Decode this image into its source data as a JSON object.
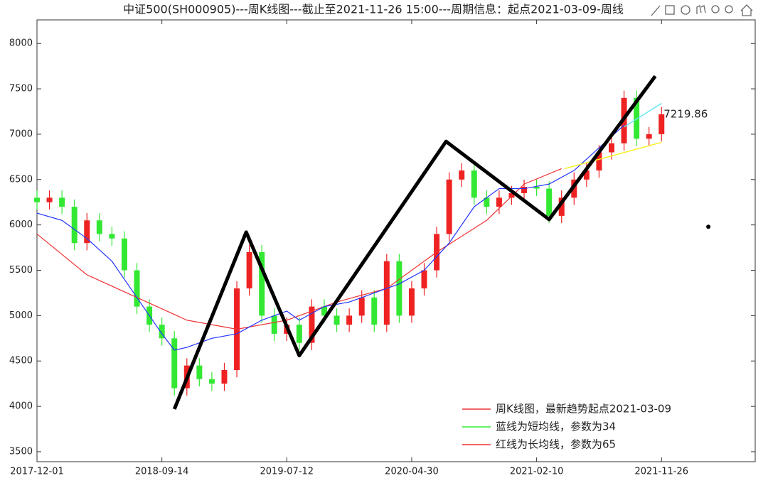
{
  "chart_data": {
    "type": "candlestick",
    "title": "中证500(SH000905)---周K线图---截止至2021-11-26 15:00---周期信息：起点2021-03-09-周线",
    "x": [
      0,
      4,
      8,
      12,
      16,
      20,
      24,
      28,
      32,
      36,
      40,
      44,
      48,
      52,
      56,
      60,
      64,
      68,
      72,
      76,
      80,
      84,
      88,
      92,
      96,
      100,
      104,
      108,
      112,
      116,
      120,
      124,
      128,
      132,
      136,
      140,
      144,
      148,
      152,
      156,
      160,
      164,
      168,
      172,
      176,
      180,
      184,
      188,
      192,
      196,
      200
    ],
    "open": [
      6300,
      6250,
      6300,
      6200,
      5800,
      6050,
      5900,
      5850,
      5500,
      5100,
      4900,
      4750,
      4200,
      4450,
      4300,
      4250,
      4400,
      5300,
      5700,
      5000,
      4800,
      4900,
      4700,
      5100,
      5000,
      4900,
      5000,
      5200,
      4900,
      5600,
      5000,
      5300,
      5500,
      5900,
      6500,
      6600,
      6300,
      6200,
      6300,
      6350,
      6420,
      6400,
      6100,
      6300,
      6500,
      6600,
      6800,
      6900,
      7400,
      6950,
      7000
    ],
    "high": [
      6380,
      6380,
      6380,
      6280,
      6130,
      6130,
      5980,
      5930,
      5580,
      5180,
      4980,
      4830,
      4530,
      4530,
      4380,
      4480,
      5380,
      5780,
      5780,
      5080,
      4980,
      4980,
      5180,
      5180,
      5080,
      5080,
      5280,
      5280,
      5680,
      5680,
      5380,
      5580,
      5980,
      6580,
      6680,
      6680,
      6380,
      6380,
      6430,
      6500,
      6500,
      6480,
      6380,
      6580,
      6680,
      6880,
      6980,
      7480,
      7480,
      7080,
      7300
    ],
    "low": [
      6170,
      6170,
      6120,
      5720,
      5720,
      5820,
      5770,
      5420,
      5020,
      4820,
      4670,
      4120,
      4120,
      4220,
      4170,
      4170,
      4320,
      5220,
      4920,
      4720,
      4720,
      4620,
      4620,
      4920,
      4820,
      4820,
      4920,
      4820,
      4820,
      4920,
      4920,
      5220,
      5420,
      5820,
      6420,
      6220,
      6120,
      6120,
      6220,
      6270,
      6320,
      6020,
      6020,
      6220,
      6420,
      6520,
      6720,
      6820,
      6870,
      6870,
      6920
    ],
    "close": [
      6250,
      6300,
      6200,
      5800,
      6050,
      5900,
      5850,
      5500,
      5100,
      4900,
      4750,
      4200,
      4450,
      4300,
      4250,
      4400,
      5300,
      5700,
      5000,
      4800,
      4900,
      4700,
      5100,
      5000,
      4900,
      5000,
      5200,
      4900,
      5600,
      5000,
      5300,
      5500,
      5900,
      6500,
      6600,
      6300,
      6200,
      6300,
      6350,
      6420,
      6400,
      6100,
      6300,
      6500,
      6600,
      6800,
      6900,
      7400,
      6950,
      7000,
      7220
    ],
    "up_color": "#ee2222",
    "down_color": "#33e833",
    "overlays": [
      {
        "color": "#ee3333",
        "width": 1.2,
        "x": [
          0,
          16,
          32,
          48,
          64,
          80,
          96,
          112,
          128,
          144,
          156,
          168
        ],
        "values": [
          5900,
          5450,
          5200,
          4950,
          4850,
          4950,
          5150,
          5300,
          5700,
          6050,
          6450,
          6620
        ]
      },
      {
        "color": "#2233ff",
        "width": 1.2,
        "x": [
          0,
          8,
          16,
          24,
          32,
          40,
          44,
          48,
          56,
          64,
          72,
          80,
          84,
          92,
          100,
          108,
          116,
          124,
          132,
          140,
          148,
          156,
          164,
          172,
          180,
          188
        ],
        "values": [
          6130,
          6050,
          5850,
          5600,
          5200,
          4800,
          4620,
          4650,
          4750,
          4800,
          4950,
          5050,
          4950,
          5100,
          5150,
          5250,
          5350,
          5500,
          5800,
          6200,
          6400,
          6400,
          6450,
          6600,
          6850,
          7100
        ]
      },
      {
        "color": "#f5f020",
        "width": 1.5,
        "x": [
          169,
          200
        ],
        "values": [
          6620,
          6910
        ]
      },
      {
        "color": "#66e6f0",
        "width": 1.5,
        "x": [
          188,
          200
        ],
        "values": [
          7080,
          7340
        ]
      },
      {
        "color": "#000000",
        "width": 5,
        "x": [
          44,
          67,
          84,
          131,
          164,
          198
        ],
        "values": [
          3970,
          5920,
          4560,
          6920,
          6060,
          7640
        ]
      }
    ],
    "marker": {
      "x": 215,
      "value": 5980,
      "color": "#000000"
    },
    "annotation": {
      "text": "7219.86",
      "x": 200,
      "value": 7219.86
    },
    "xlim": [
      0,
      230
    ],
    "xticks": [
      {
        "value": 0,
        "label": "2017-12-01"
      },
      {
        "value": 40,
        "label": "2018-09-14"
      },
      {
        "value": 80,
        "label": "2019-07-12"
      },
      {
        "value": 120,
        "label": "2020-04-30"
      },
      {
        "value": 160,
        "label": "2021-02-10"
      },
      {
        "value": 200,
        "label": "2021-11-26"
      }
    ],
    "ylim": [
      3390,
      8260
    ],
    "yticks": [
      3500,
      4000,
      4500,
      5000,
      5500,
      6000,
      6500,
      7000,
      7500,
      8000
    ],
    "legend": {
      "position": "lower right",
      "entries": [
        {
          "label": "周K线图，最新趋势起点2021-03-09",
          "color": "#ee3333"
        },
        {
          "label": "蓝线为短均线，参数为34",
          "color": "#33ee33"
        },
        {
          "label": "红线为长均线，参数为65",
          "color": "#ee3333"
        }
      ]
    }
  }
}
